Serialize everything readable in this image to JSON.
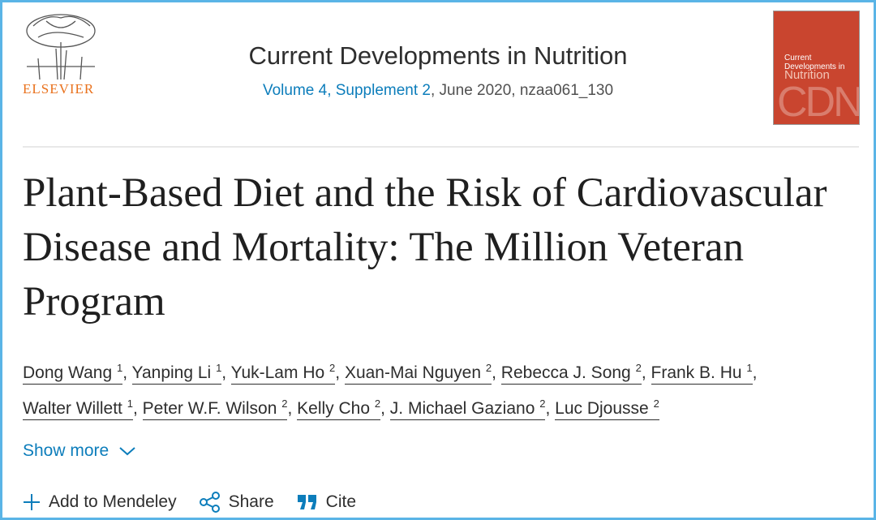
{
  "header": {
    "publisher": "ELSEVIER",
    "journal": "Current Developments in Nutrition",
    "volume_link": "Volume 4, Supplement 2",
    "issue_details": ", June 2020, nzaa061_130",
    "cover": {
      "line1": "Current",
      "line2": "Developments in",
      "line3": "Nutrition",
      "mark": "CDN"
    }
  },
  "article": {
    "title": "Plant-Based Diet and the Risk of Cardiovascular Disease and Mortality: The Million Veteran Program",
    "author_separator": ",",
    "authors": [
      {
        "name": "Dong Wang",
        "sup": "1"
      },
      {
        "name": "Yanping Li",
        "sup": "1"
      },
      {
        "name": "Yuk-Lam Ho",
        "sup": "2"
      },
      {
        "name": "Xuan-Mai Nguyen",
        "sup": "2"
      },
      {
        "name": "Rebecca J. Song",
        "sup": "2"
      },
      {
        "name": "Frank B. Hu",
        "sup": "1"
      },
      {
        "name": "Walter Willett",
        "sup": "1"
      },
      {
        "name": "Peter W.F. Wilson",
        "sup": "2"
      },
      {
        "name": "Kelly Cho",
        "sup": "2"
      },
      {
        "name": "J. Michael Gaziano",
        "sup": "2"
      },
      {
        "name": "Luc Djousse",
        "sup": "2"
      }
    ],
    "show_more": "Show more"
  },
  "actions": [
    "Add to Mendeley",
    "Share",
    "Cite"
  ]
}
